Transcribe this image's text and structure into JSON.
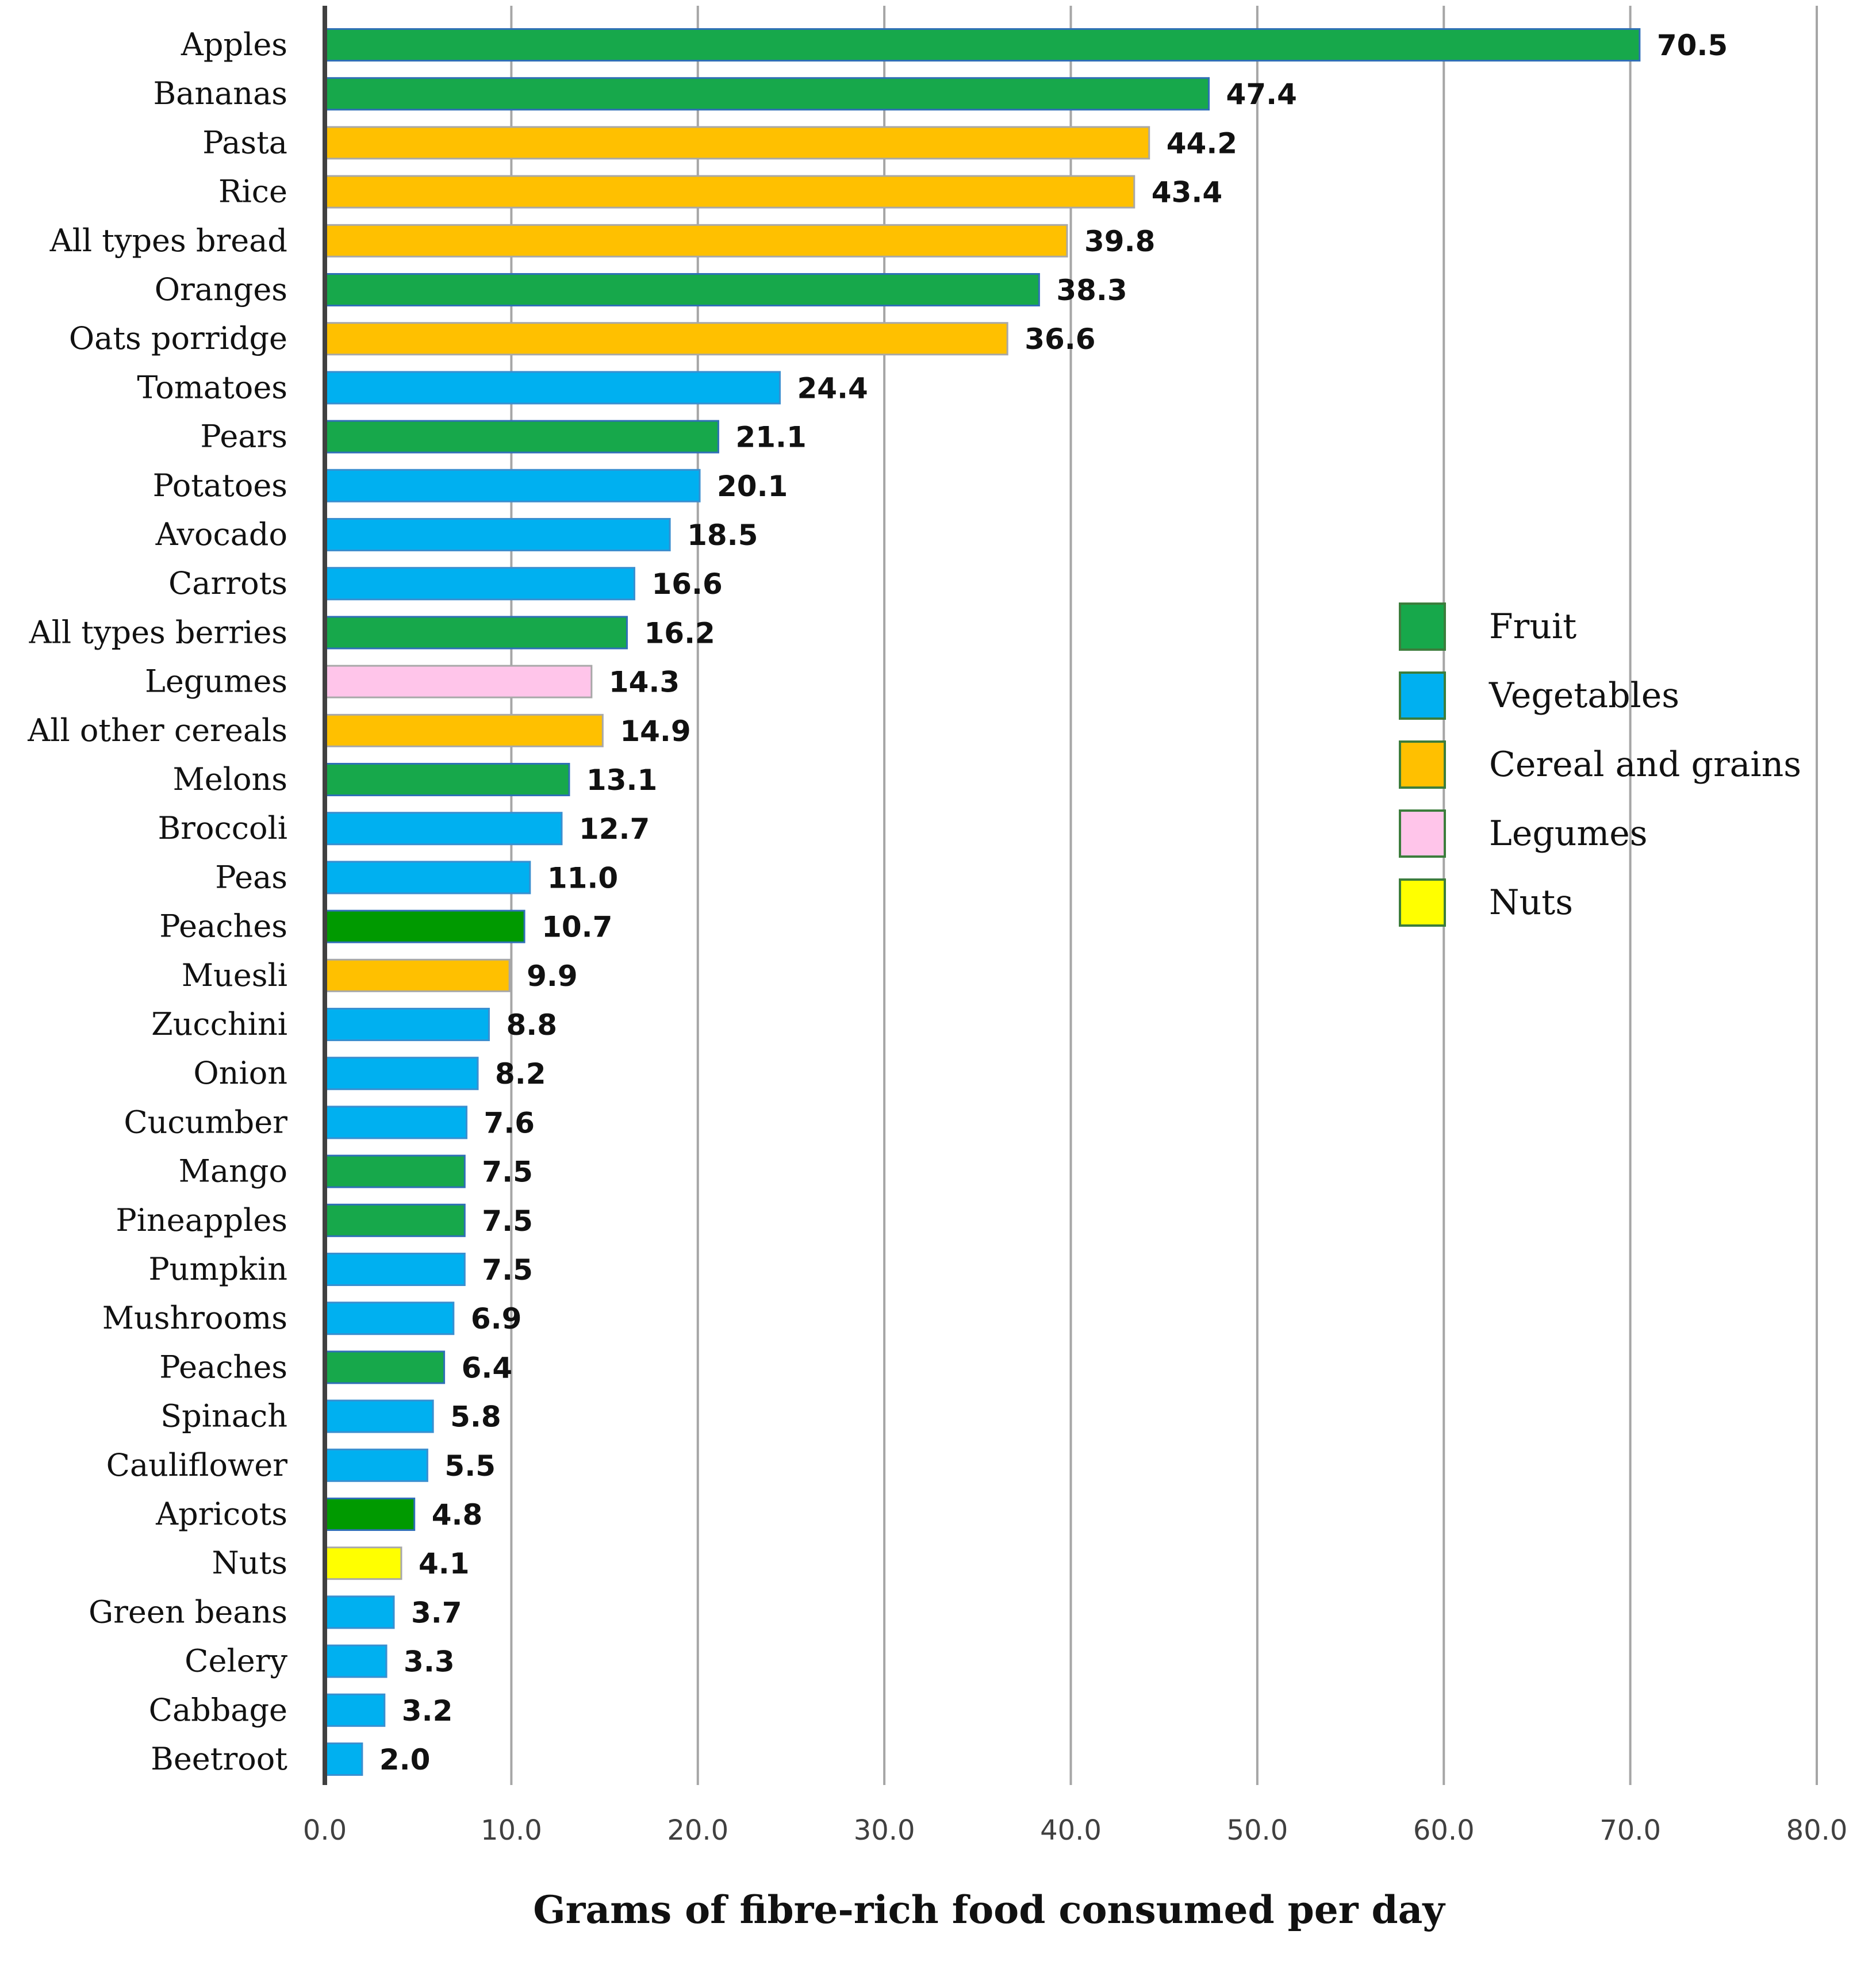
{
  "chart_data": {
    "type": "bar",
    "orientation": "horizontal",
    "title": "",
    "xlabel": "Grams of  fibre-rich food consumed per day",
    "ylabel": "",
    "xlim": [
      0,
      80
    ],
    "x_ticks": [
      "0.0",
      "10.0",
      "20.0",
      "30.0",
      "40.0",
      "50.0",
      "60.0",
      "70.0",
      "80.0"
    ],
    "grid": "vertical",
    "legend_position": "right",
    "legend": [
      {
        "name": "Fruit",
        "color": "#17a84b"
      },
      {
        "name": "Vegetables",
        "color": "#00b0f0"
      },
      {
        "name": "Cereal and grains",
        "color": "#ffc000"
      },
      {
        "name": "Legumes",
        "color": "#ffc5ea"
      },
      {
        "name": "Nuts",
        "color": "#ffff00"
      }
    ],
    "bars": [
      {
        "label": "Apples",
        "value": 70.5,
        "display": "70.5",
        "group": "Fruit"
      },
      {
        "label": "Bananas",
        "value": 47.4,
        "display": "47.4",
        "group": "Fruit"
      },
      {
        "label": "Pasta",
        "value": 44.2,
        "display": "44.2",
        "group": "Cereal and grains"
      },
      {
        "label": "Rice",
        "value": 43.4,
        "display": "43.4",
        "group": "Cereal and grains"
      },
      {
        "label": "All types bread",
        "value": 39.8,
        "display": "39.8",
        "group": "Cereal and grains"
      },
      {
        "label": "Oranges",
        "value": 38.3,
        "display": "38.3",
        "group": "Fruit"
      },
      {
        "label": "Oats porridge",
        "value": 36.6,
        "display": "36.6",
        "group": "Cereal and grains"
      },
      {
        "label": "Tomatoes",
        "value": 24.4,
        "display": "24.4",
        "group": "Vegetables"
      },
      {
        "label": "Pears",
        "value": 21.1,
        "display": "21.1",
        "group": "Fruit"
      },
      {
        "label": "Potatoes",
        "value": 20.1,
        "display": "20.1",
        "group": "Vegetables"
      },
      {
        "label": "Avocado",
        "value": 18.5,
        "display": "18.5",
        "group": "Vegetables"
      },
      {
        "label": "Carrots",
        "value": 16.6,
        "display": "16.6",
        "group": "Vegetables"
      },
      {
        "label": "All types berries",
        "value": 16.2,
        "display": "16.2",
        "group": "Fruit"
      },
      {
        "label": "Legumes",
        "value": 14.3,
        "display": "14.3",
        "group": "Legumes"
      },
      {
        "label": "All other cereals",
        "value": 14.9,
        "display": "14.9",
        "group": "Cereal and grains"
      },
      {
        "label": "Melons",
        "value": 13.1,
        "display": "13.1",
        "group": "Fruit"
      },
      {
        "label": "Broccoli",
        "value": 12.7,
        "display": "12.7",
        "group": "Vegetables"
      },
      {
        "label": "Peas",
        "value": 11.0,
        "display": "11.0",
        "group": "Vegetables"
      },
      {
        "label": "Peaches",
        "value": 10.7,
        "display": "10.7",
        "group": "Fruit",
        "color": "#009a00"
      },
      {
        "label": "Muesli",
        "value": 9.9,
        "display": "9.9",
        "group": "Cereal and grains"
      },
      {
        "label": "Zucchini",
        "value": 8.8,
        "display": "8.8",
        "group": "Vegetables"
      },
      {
        "label": "Onion",
        "value": 8.2,
        "display": "8.2",
        "group": "Vegetables"
      },
      {
        "label": "Cucumber",
        "value": 7.6,
        "display": "7.6",
        "group": "Vegetables"
      },
      {
        "label": "Mango",
        "value": 7.5,
        "display": "7.5",
        "group": "Fruit"
      },
      {
        "label": "Pineapples",
        "value": 7.5,
        "display": "7.5",
        "group": "Fruit"
      },
      {
        "label": "Pumpkin",
        "value": 7.5,
        "display": "7.5",
        "group": "Vegetables"
      },
      {
        "label": "Mushrooms",
        "value": 6.9,
        "display": "6.9",
        "group": "Vegetables"
      },
      {
        "label": "Peaches",
        "value": 6.4,
        "display": "6.4",
        "group": "Fruit"
      },
      {
        "label": "Spinach",
        "value": 5.8,
        "display": "5.8",
        "group": "Vegetables"
      },
      {
        "label": "Cauliflower",
        "value": 5.5,
        "display": "5.5",
        "group": "Vegetables"
      },
      {
        "label": "Apricots",
        "value": 4.8,
        "display": "4.8",
        "group": "Fruit",
        "color": "#009a00"
      },
      {
        "label": "Nuts",
        "value": 4.1,
        "display": "4.1",
        "group": "Nuts"
      },
      {
        "label": "Green beans",
        "value": 3.7,
        "display": "3.7",
        "group": "Vegetables"
      },
      {
        "label": "Celery",
        "value": 3.3,
        "display": "3.3",
        "group": "Vegetables"
      },
      {
        "label": "Cabbage",
        "value": 3.2,
        "display": "3.2",
        "group": "Vegetables"
      },
      {
        "label": "Beetroot",
        "value": 2.0,
        "display": "2.0",
        "group": "Vegetables"
      }
    ]
  }
}
